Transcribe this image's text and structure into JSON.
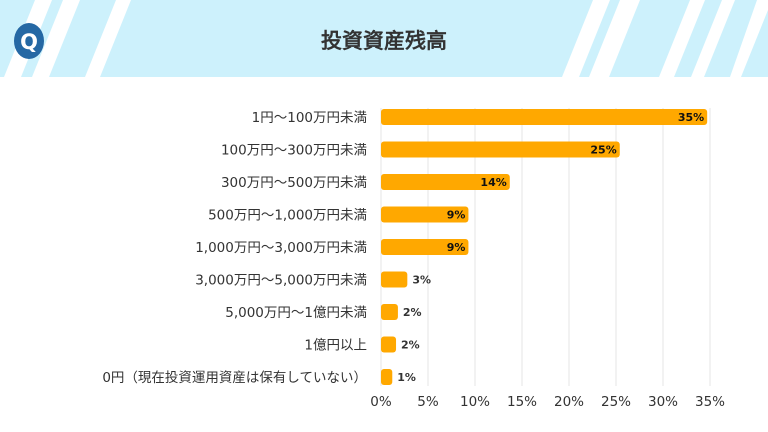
{
  "header": {
    "title": "投資資産残高",
    "logo_letter": "Q",
    "logo_color": "#2568a4",
    "band_color": "#cdf1fc"
  },
  "chart_data": {
    "type": "bar",
    "orientation": "horizontal",
    "title": "投資資産残高",
    "categories": [
      "1円～100万円未満",
      "100万円～300万円未満",
      "300万円～500万円未満",
      "500万円～1,000万円未満",
      "1,000万円～3,000万円未満",
      "3,000万円～5,000万円未満",
      "5,000万円～1億円未満",
      "1億円以上",
      "0円（現在投資運用資産は保有していない）"
    ],
    "values": [
      34.7,
      25.4,
      13.7,
      9.3,
      9.3,
      2.8,
      1.8,
      1.6,
      1.2
    ],
    "data_labels": [
      "35%",
      "25%",
      "14%",
      "9%",
      "9%",
      "3%",
      "2%",
      "2%",
      "1%"
    ],
    "xlim": [
      0,
      35
    ],
    "x_ticks": [
      "0%",
      "5%",
      "10%",
      "15%",
      "20%",
      "25%",
      "30%",
      "35%"
    ],
    "grid": "vertical",
    "bar_color": "#ffa800"
  }
}
